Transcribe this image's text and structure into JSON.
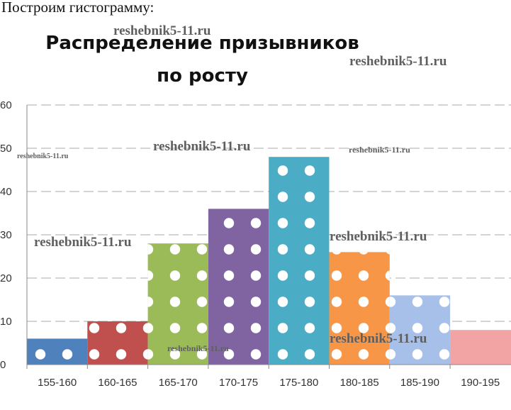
{
  "intro_text": "Построим гистограмму:",
  "watermark_text": "reshebnik5-11.ru",
  "chart_data": {
    "type": "bar",
    "title_lines": [
      "Распределение призывников",
      "по росту"
    ],
    "categories": [
      "155-160",
      "160-165",
      "165-170",
      "170-175",
      "175-180",
      "180-185",
      "185-190",
      "190-195"
    ],
    "values": [
      6,
      10,
      28,
      36,
      48,
      26,
      16,
      8
    ],
    "colors": [
      "#4f81bd",
      "#c0504d",
      "#9bbb59",
      "#8064a2",
      "#4bacc6",
      "#f79646",
      "#a7c0ea",
      "#f2a3a3"
    ],
    "ylim": [
      0,
      60
    ],
    "yticks": [
      0,
      10,
      20,
      30,
      40,
      50,
      60
    ],
    "grid": true,
    "legend": "none"
  }
}
